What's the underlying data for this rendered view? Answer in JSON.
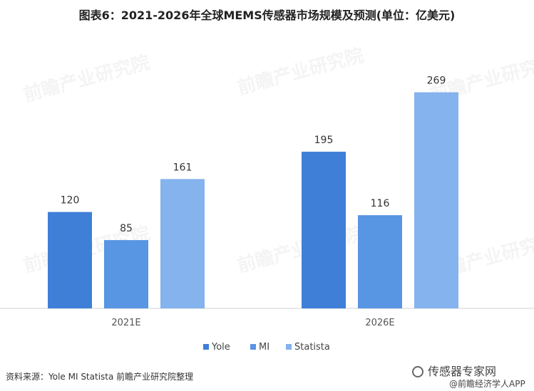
{
  "title": "图表6：2021-2026年全球MEMS传感器市场规模及预测(单位：亿美元)",
  "chart_data": {
    "type": "bar",
    "categories": [
      "2021E",
      "2026E"
    ],
    "series": [
      {
        "name": "Yole",
        "values": [
          120,
          195
        ],
        "color": "#3f7fd8"
      },
      {
        "name": "MI",
        "values": [
          85,
          116
        ],
        "color": "#5895e2"
      },
      {
        "name": "Statista",
        "values": [
          161,
          269
        ],
        "color": "#84b3ed"
      }
    ],
    "ylim": [
      0,
      300
    ],
    "grid": false,
    "legend": "bottom"
  },
  "footer": {
    "source": "资料来源：Yole MI Statista 前瞻产业研究院整理",
    "brand": "传感器专家网",
    "sub_brand": "@前瞻经济学人APP"
  },
  "watermark": "前瞻产业研究院"
}
